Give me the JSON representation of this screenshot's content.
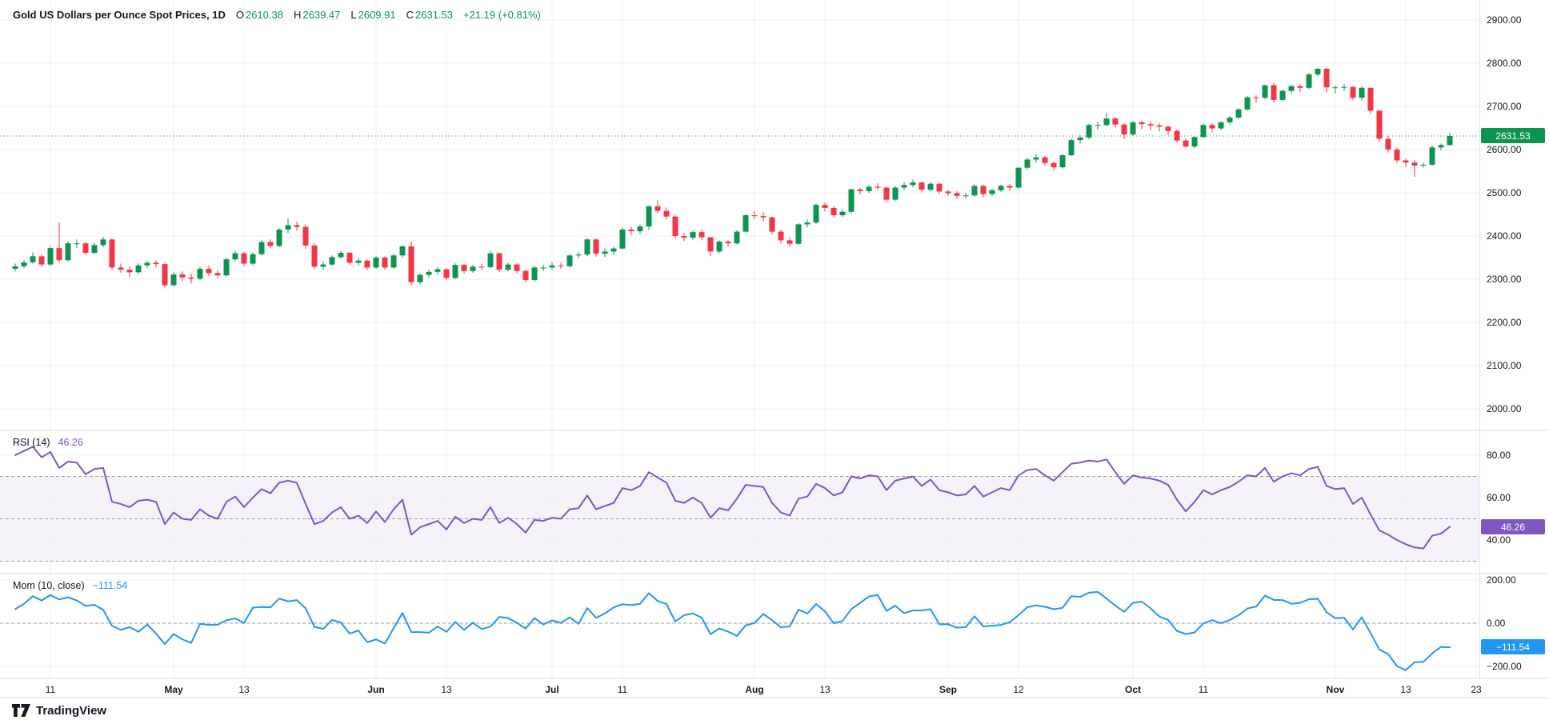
{
  "header": {
    "symbol_title": "Gold US Dollars per Ounce Spot Prices, 1D",
    "open_label": "O",
    "open_value": "2610.38",
    "high_label": "H",
    "high_value": "2639.47",
    "low_label": "L",
    "low_value": "2609.91",
    "close_label": "C",
    "close_value": "2631.53",
    "change_text": "+21.19 (+0.81%)"
  },
  "indicators": {
    "rsi": {
      "label": "RSI (14)",
      "value": "46.26"
    },
    "momentum": {
      "label": "Mom (10, close)",
      "value": "−111.54"
    }
  },
  "price_scale": {
    "badge": "2631.53",
    "ticks": [
      {
        "v": 2900,
        "l": "2900.00"
      },
      {
        "v": 2800,
        "l": "2800.00"
      },
      {
        "v": 2700,
        "l": "2700.00"
      },
      {
        "v": 2600,
        "l": "2600.00"
      },
      {
        "v": 2500,
        "l": "2500.00"
      },
      {
        "v": 2400,
        "l": "2400.00"
      },
      {
        "v": 2300,
        "l": "2300.00"
      },
      {
        "v": 2200,
        "l": "2200.00"
      },
      {
        "v": 2100,
        "l": "2100.00"
      },
      {
        "v": 2000,
        "l": "2000.00"
      }
    ]
  },
  "rsi_scale": {
    "badge": "46.26",
    "ticks": [
      {
        "v": 80,
        "l": "80.00"
      },
      {
        "v": 60,
        "l": "60.00"
      },
      {
        "v": 40,
        "l": "40.00"
      }
    ],
    "dashed_levels": [
      70,
      50,
      30
    ],
    "band": [
      30,
      70
    ]
  },
  "mom_scale": {
    "badge": "−111.54",
    "ticks": [
      {
        "v": 200,
        "l": "200.00"
      },
      {
        "v": 0,
        "l": "0.00"
      },
      {
        "v": -200,
        "l": "−200.00"
      }
    ],
    "dashed_levels": [
      0
    ]
  },
  "time_scale": {
    "ticks": [
      {
        "i": 4,
        "l": "11"
      },
      {
        "i": 18,
        "l": "May",
        "m": true
      },
      {
        "i": 26,
        "l": "13"
      },
      {
        "i": 41,
        "l": "Jun",
        "m": true
      },
      {
        "i": 49,
        "l": "13"
      },
      {
        "i": 61,
        "l": "Jul",
        "m": true
      },
      {
        "i": 69,
        "l": "11"
      },
      {
        "i": 84,
        "l": "Aug",
        "m": true
      },
      {
        "i": 92,
        "l": "13"
      },
      {
        "i": 106,
        "l": "Sep",
        "m": true
      },
      {
        "i": 114,
        "l": "12"
      },
      {
        "i": 127,
        "l": "Oct",
        "m": true
      },
      {
        "i": 135,
        "l": "11"
      },
      {
        "i": 150,
        "l": "Nov",
        "m": true
      },
      {
        "i": 158,
        "l": "13"
      },
      {
        "i": 166,
        "l": "23"
      }
    ]
  },
  "footer": {
    "logo_text": "TradingView"
  },
  "colors": {
    "up": "#0e9452",
    "down": "#f23645",
    "rsi_line": "#7e57c2",
    "mom_line": "#2196f3",
    "grid": "#eef1f7",
    "separator": "#dcdfe8",
    "dashed": "#8c8f98",
    "text": "#131722",
    "rsi_band_fill": "rgba(126,87,194,0.08)",
    "last_price_line": "#0e9452"
  },
  "chart_data": {
    "type": "candlestick",
    "title": "Gold US Dollars per Ounce Spot Prices",
    "timeframe": "1D",
    "legend": [
      "OHLC candles",
      "RSI (14)",
      "Mom (10, close)"
    ],
    "last_bar": {
      "open": 2610.38,
      "high": 2639.47,
      "low": 2609.91,
      "close": 2631.53,
      "change": "+21.19 (+0.81%)"
    },
    "price_axis_range": [
      1950,
      2946
    ],
    "rsi_axis_range": [
      24,
      92
    ],
    "mom_axis_range": [
      -274,
      230
    ],
    "candles": [
      [
        2324,
        2336,
        2318,
        2330
      ],
      [
        2330,
        2344,
        2326,
        2339
      ],
      [
        2339,
        2362,
        2336,
        2353
      ],
      [
        2353,
        2357,
        2328,
        2334
      ],
      [
        2334,
        2377,
        2330,
        2372
      ],
      [
        2372,
        2431,
        2338,
        2344
      ],
      [
        2344,
        2388,
        2341,
        2383
      ],
      [
        2383,
        2392,
        2372,
        2383
      ],
      [
        2383,
        2386,
        2355,
        2361
      ],
      [
        2361,
        2384,
        2358,
        2379
      ],
      [
        2379,
        2398,
        2374,
        2392
      ],
      [
        2392,
        2394,
        2322,
        2327
      ],
      [
        2327,
        2336,
        2315,
        2322
      ],
      [
        2322,
        2330,
        2305,
        2316
      ],
      [
        2316,
        2337,
        2312,
        2332
      ],
      [
        2332,
        2343,
        2326,
        2338
      ],
      [
        2338,
        2344,
        2327,
        2335
      ],
      [
        2335,
        2339,
        2281,
        2286
      ],
      [
        2286,
        2316,
        2283,
        2311
      ],
      [
        2311,
        2318,
        2296,
        2304
      ],
      [
        2304,
        2312,
        2290,
        2301
      ],
      [
        2301,
        2329,
        2298,
        2324
      ],
      [
        2324,
        2331,
        2307,
        2314
      ],
      [
        2314,
        2321,
        2302,
        2309
      ],
      [
        2309,
        2350,
        2306,
        2346
      ],
      [
        2346,
        2365,
        2342,
        2360
      ],
      [
        2360,
        2364,
        2330,
        2336
      ],
      [
        2336,
        2362,
        2332,
        2358
      ],
      [
        2358,
        2390,
        2355,
        2386
      ],
      [
        2386,
        2392,
        2371,
        2377
      ],
      [
        2377,
        2418,
        2375,
        2415
      ],
      [
        2415,
        2440,
        2406,
        2425
      ],
      [
        2425,
        2433,
        2412,
        2421
      ],
      [
        2421,
        2426,
        2370,
        2378
      ],
      [
        2378,
        2383,
        2325,
        2329
      ],
      [
        2329,
        2340,
        2322,
        2334
      ],
      [
        2334,
        2355,
        2331,
        2351
      ],
      [
        2351,
        2366,
        2347,
        2361
      ],
      [
        2361,
        2363,
        2333,
        2338
      ],
      [
        2338,
        2349,
        2332,
        2343
      ],
      [
        2343,
        2346,
        2320,
        2327
      ],
      [
        2327,
        2354,
        2324,
        2350
      ],
      [
        2350,
        2353,
        2322,
        2327
      ],
      [
        2327,
        2359,
        2325,
        2355
      ],
      [
        2355,
        2378,
        2350,
        2376
      ],
      [
        2376,
        2388,
        2286,
        2293
      ],
      [
        2293,
        2314,
        2288,
        2310
      ],
      [
        2310,
        2322,
        2304,
        2317
      ],
      [
        2317,
        2328,
        2310,
        2323
      ],
      [
        2323,
        2326,
        2298,
        2303
      ],
      [
        2303,
        2337,
        2300,
        2333
      ],
      [
        2333,
        2336,
        2313,
        2319
      ],
      [
        2319,
        2333,
        2315,
        2329
      ],
      [
        2329,
        2336,
        2321,
        2328
      ],
      [
        2328,
        2365,
        2325,
        2360
      ],
      [
        2360,
        2362,
        2316,
        2322
      ],
      [
        2322,
        2338,
        2318,
        2334
      ],
      [
        2334,
        2337,
        2313,
        2319
      ],
      [
        2319,
        2323,
        2293,
        2298
      ],
      [
        2298,
        2331,
        2295,
        2327
      ],
      [
        2327,
        2334,
        2319,
        2327
      ],
      [
        2327,
        2339,
        2322,
        2332
      ],
      [
        2332,
        2337,
        2324,
        2330
      ],
      [
        2330,
        2359,
        2327,
        2355
      ],
      [
        2355,
        2363,
        2349,
        2357
      ],
      [
        2357,
        2395,
        2353,
        2392
      ],
      [
        2392,
        2394,
        2352,
        2359
      ],
      [
        2359,
        2371,
        2351,
        2364
      ],
      [
        2364,
        2376,
        2357,
        2371
      ],
      [
        2371,
        2419,
        2368,
        2415
      ],
      [
        2415,
        2421,
        2402,
        2411
      ],
      [
        2411,
        2427,
        2405,
        2422
      ],
      [
        2422,
        2470,
        2414,
        2469
      ],
      [
        2469,
        2483,
        2452,
        2458
      ],
      [
        2458,
        2466,
        2438,
        2445
      ],
      [
        2445,
        2449,
        2394,
        2400
      ],
      [
        2400,
        2407,
        2388,
        2396
      ],
      [
        2396,
        2413,
        2391,
        2409
      ],
      [
        2409,
        2414,
        2390,
        2397
      ],
      [
        2397,
        2398,
        2353,
        2364
      ],
      [
        2364,
        2390,
        2360,
        2387
      ],
      [
        2387,
        2391,
        2375,
        2383
      ],
      [
        2383,
        2413,
        2380,
        2410
      ],
      [
        2410,
        2451,
        2407,
        2448
      ],
      [
        2448,
        2458,
        2439,
        2446
      ],
      [
        2446,
        2455,
        2434,
        2443
      ],
      [
        2443,
        2445,
        2404,
        2410
      ],
      [
        2410,
        2415,
        2383,
        2390
      ],
      [
        2390,
        2396,
        2375,
        2382
      ],
      [
        2382,
        2430,
        2379,
        2427
      ],
      [
        2427,
        2438,
        2420,
        2431
      ],
      [
        2431,
        2475,
        2428,
        2472
      ],
      [
        2472,
        2477,
        2457,
        2465
      ],
      [
        2465,
        2469,
        2442,
        2448
      ],
      [
        2448,
        2462,
        2444,
        2456
      ],
      [
        2456,
        2510,
        2452,
        2508
      ],
      [
        2508,
        2512,
        2496,
        2504
      ],
      [
        2504,
        2518,
        2500,
        2514
      ],
      [
        2514,
        2522,
        2507,
        2512
      ],
      [
        2512,
        2514,
        2478,
        2484
      ],
      [
        2484,
        2516,
        2481,
        2512
      ],
      [
        2512,
        2524,
        2506,
        2518
      ],
      [
        2518,
        2531,
        2513,
        2524
      ],
      [
        2524,
        2526,
        2501,
        2507
      ],
      [
        2507,
        2525,
        2503,
        2521
      ],
      [
        2521,
        2523,
        2497,
        2503
      ],
      [
        2503,
        2507,
        2493,
        2499
      ],
      [
        2499,
        2504,
        2486,
        2493
      ],
      [
        2493,
        2500,
        2487,
        2494
      ],
      [
        2494,
        2520,
        2491,
        2516
      ],
      [
        2516,
        2518,
        2490,
        2497
      ],
      [
        2497,
        2510,
        2493,
        2506
      ],
      [
        2506,
        2519,
        2502,
        2516
      ],
      [
        2516,
        2520,
        2504,
        2512
      ],
      [
        2512,
        2560,
        2507,
        2558
      ],
      [
        2558,
        2581,
        2554,
        2577
      ],
      [
        2577,
        2589,
        2570,
        2582
      ],
      [
        2582,
        2585,
        2563,
        2569
      ],
      [
        2569,
        2573,
        2551,
        2559
      ],
      [
        2559,
        2590,
        2556,
        2587
      ],
      [
        2587,
        2625,
        2585,
        2622
      ],
      [
        2622,
        2633,
        2614,
        2628
      ],
      [
        2628,
        2660,
        2624,
        2657
      ],
      [
        2657,
        2664,
        2646,
        2657
      ],
      [
        2657,
        2685,
        2654,
        2672
      ],
      [
        2672,
        2675,
        2651,
        2658
      ],
      [
        2658,
        2661,
        2625,
        2635
      ],
      [
        2635,
        2666,
        2632,
        2663
      ],
      [
        2663,
        2667,
        2648,
        2659
      ],
      [
        2659,
        2665,
        2644,
        2656
      ],
      [
        2656,
        2661,
        2642,
        2653
      ],
      [
        2653,
        2656,
        2634,
        2643
      ],
      [
        2643,
        2647,
        2616,
        2621
      ],
      [
        2621,
        2626,
        2605,
        2607
      ],
      [
        2607,
        2631,
        2603,
        2629
      ],
      [
        2629,
        2660,
        2626,
        2657
      ],
      [
        2657,
        2662,
        2640,
        2649
      ],
      [
        2649,
        2666,
        2645,
        2663
      ],
      [
        2663,
        2678,
        2658,
        2674
      ],
      [
        2674,
        2696,
        2670,
        2693
      ],
      [
        2693,
        2724,
        2690,
        2721
      ],
      [
        2721,
        2726,
        2709,
        2720
      ],
      [
        2720,
        2750,
        2716,
        2749
      ],
      [
        2749,
        2755,
        2708,
        2715
      ],
      [
        2715,
        2739,
        2711,
        2736
      ],
      [
        2736,
        2750,
        2730,
        2747
      ],
      [
        2747,
        2751,
        2733,
        2743
      ],
      [
        2743,
        2777,
        2740,
        2774
      ],
      [
        2774,
        2789,
        2770,
        2787
      ],
      [
        2787,
        2790,
        2732,
        2744
      ],
      [
        2744,
        2748,
        2730,
        2744
      ],
      [
        2744,
        2752,
        2736,
        2745
      ],
      [
        2745,
        2747,
        2714,
        2720
      ],
      [
        2720,
        2746,
        2714,
        2743
      ],
      [
        2743,
        2744,
        2683,
        2690
      ],
      [
        2690,
        2692,
        2618,
        2625
      ],
      [
        2625,
        2632,
        2593,
        2600
      ],
      [
        2600,
        2604,
        2568,
        2575
      ],
      [
        2575,
        2580,
        2560,
        2570
      ],
      [
        2570,
        2575,
        2537,
        2563
      ],
      [
        2563,
        2570,
        2558,
        2565
      ],
      [
        2565,
        2610,
        2562,
        2605
      ],
      [
        2605,
        2614,
        2598,
        2610.4
      ],
      [
        2610.38,
        2639.47,
        2609.91,
        2631.53
      ]
    ],
    "rsi14": [
      80,
      82,
      84,
      79,
      81.5,
      74,
      77,
      76.5,
      71,
      73.5,
      74,
      58,
      57,
      55.5,
      58.5,
      59,
      58,
      47.5,
      53,
      50,
      49.5,
      54.5,
      51.5,
      50,
      58,
      60.5,
      55.5,
      60,
      64,
      62,
      67,
      68,
      67,
      57,
      47.5,
      49,
      53,
      55.5,
      50,
      51.5,
      48,
      53.5,
      48.5,
      54.5,
      59,
      42.5,
      46,
      47.5,
      49,
      45,
      51,
      48,
      50,
      49.5,
      55.5,
      48,
      50.5,
      47.5,
      43.5,
      49.5,
      49,
      50.5,
      50,
      54.5,
      55,
      61,
      54.5,
      56,
      57.5,
      64.5,
      63.5,
      65.5,
      72,
      69.5,
      67,
      58.5,
      57.5,
      60,
      57.5,
      50.5,
      55,
      54,
      59.5,
      66,
      65.5,
      65,
      57.5,
      53,
      51.5,
      59.5,
      60.5,
      66.5,
      64.5,
      61,
      62.5,
      70,
      69,
      70.5,
      70,
      63.5,
      68,
      69,
      70,
      65.5,
      68.5,
      63.5,
      62.5,
      61,
      61.5,
      65.5,
      60.5,
      62.5,
      64.5,
      63.5,
      70.5,
      73,
      73.5,
      70.5,
      68,
      72,
      76,
      76.5,
      77.5,
      77,
      78,
      72,
      66.5,
      70.5,
      69.5,
      69,
      68,
      66,
      59,
      53.5,
      58,
      63.5,
      61.5,
      63.5,
      65,
      67.5,
      70.5,
      70,
      74,
      67.5,
      70,
      71.5,
      70.5,
      73.5,
      74.5,
      65.5,
      64,
      64.5,
      57,
      60,
      52,
      44.5,
      42.5,
      40,
      38,
      36.5,
      36,
      42,
      43,
      46.26
    ],
    "mom10": [
      65,
      90,
      125,
      105,
      130,
      110,
      120,
      105,
      80,
      85,
      62,
      -12,
      -31,
      -18,
      -40,
      -6,
      -48,
      -97,
      -50,
      -75,
      -91,
      -3,
      -8,
      -7,
      14,
      22,
      1,
      72,
      75,
      73,
      114,
      101,
      107,
      69,
      -17,
      -26,
      15,
      3,
      -48,
      -34,
      -88,
      -75,
      -94,
      -23,
      47,
      -41,
      -41,
      -44,
      -15,
      -40,
      6,
      -31,
      2,
      -27,
      -16,
      29,
      24,
      2,
      -25,
      24,
      -6,
      13,
      1,
      27,
      -3,
      70,
      25,
      45,
      73,
      88,
      84,
      90,
      139,
      103,
      88,
      8,
      37,
      45,
      26,
      -51,
      -24,
      -39,
      -59,
      -10,
      1,
      43,
      14,
      -19,
      -15,
      63,
      44,
      89,
      55,
      0,
      10,
      65,
      94,
      124,
      130,
      57,
      81,
      46,
      59,
      59,
      65,
      -5,
      -5,
      -21,
      -18,
      32,
      -15,
      -12,
      -8,
      5,
      37,
      74,
      83,
      76,
      65,
      71,
      125,
      122,
      141,
      145,
      114,
      81,
      53,
      94,
      100,
      69,
      31,
      15,
      -36,
      -50,
      -43,
      -1,
      14,
      0,
      15,
      37,
      68,
      77,
      128,
      108,
      107,
      90,
      94,
      111,
      113,
      51,
      23,
      25,
      -29,
      28,
      -46,
      -122,
      -143,
      -199,
      -217,
      -181,
      -179,
      -140,
      -109.6,
      -111.54
    ],
    "last_price_level": 2631.53
  }
}
